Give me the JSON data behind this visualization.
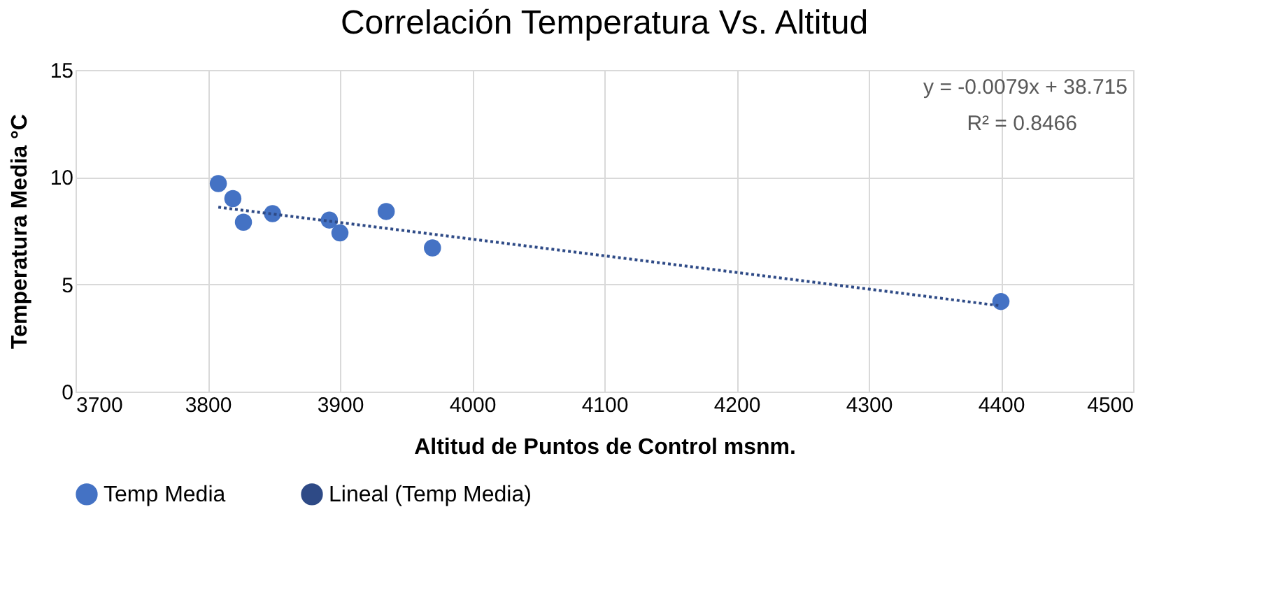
{
  "chart_data": {
    "type": "scatter",
    "title": "Correlación Temperatura Vs. Altitud",
    "xlabel": "Altitud de Puntos de Control msnm.",
    "ylabel": "Temperatura Media °C",
    "xlim": [
      3700,
      4500
    ],
    "xticks": [
      3700,
      3800,
      3900,
      4000,
      4100,
      4200,
      4300,
      4400,
      4500
    ],
    "ylim": [
      0,
      15
    ],
    "yticks": [
      0,
      5,
      10,
      15
    ],
    "grid": true,
    "legend": "bottom",
    "series": [
      {
        "name": "Temp Media",
        "marker": "circle",
        "color": "#4472c4",
        "x": [
          3808,
          3819,
          3827,
          3849,
          3892,
          3900,
          3935,
          3970,
          4400
        ],
        "values": [
          9.7,
          9.0,
          7.9,
          8.3,
          8.0,
          7.4,
          8.4,
          6.7,
          4.2
        ]
      },
      {
        "name": "Lineal (Temp Media)",
        "type": "line",
        "line_style": "dotted",
        "color": "#2e4a86",
        "x": [
          3808,
          4400
        ],
        "values": [
          8.6,
          4.0
        ]
      }
    ],
    "annotations": [
      "y = -0.0079x + 38.715",
      "R² = 0.8466"
    ]
  }
}
